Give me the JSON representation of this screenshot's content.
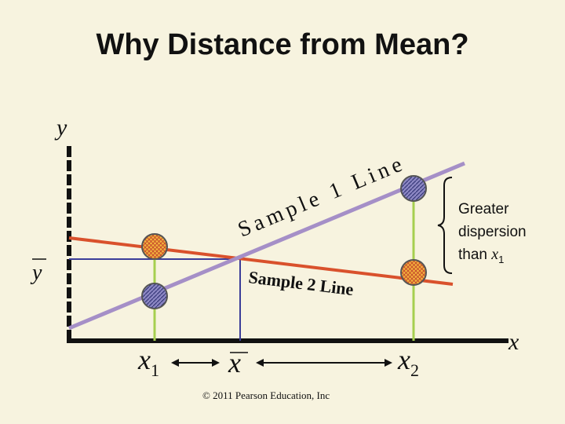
{
  "title": "Why Distance from Mean?",
  "axes": {
    "y_label": "y",
    "x_label": "x"
  },
  "labels": {
    "y_bar": "y",
    "x1": "x",
    "x1_sub": "1",
    "x_bar": "x",
    "x2": "x",
    "x2_sub": "2",
    "sample1": "Sample 1 Line",
    "sample2": "Sample 2 Line"
  },
  "annotation": {
    "line1": "Greater",
    "line2": "dispersion",
    "line3_prefix": "than ",
    "line3_var": "x",
    "line3_sub": "1"
  },
  "copyright": "© 2011 Pearson Education, Inc",
  "colors": {
    "background": "#f7f3df",
    "sample1_line": "#a58fc7",
    "sample2_line": "#d9512c",
    "mean_guides": "#3b3d99",
    "stems": "#a6cf4f",
    "point_fill_orange": "#f2b33d",
    "point_fill_purple": "#8b86c2"
  }
}
